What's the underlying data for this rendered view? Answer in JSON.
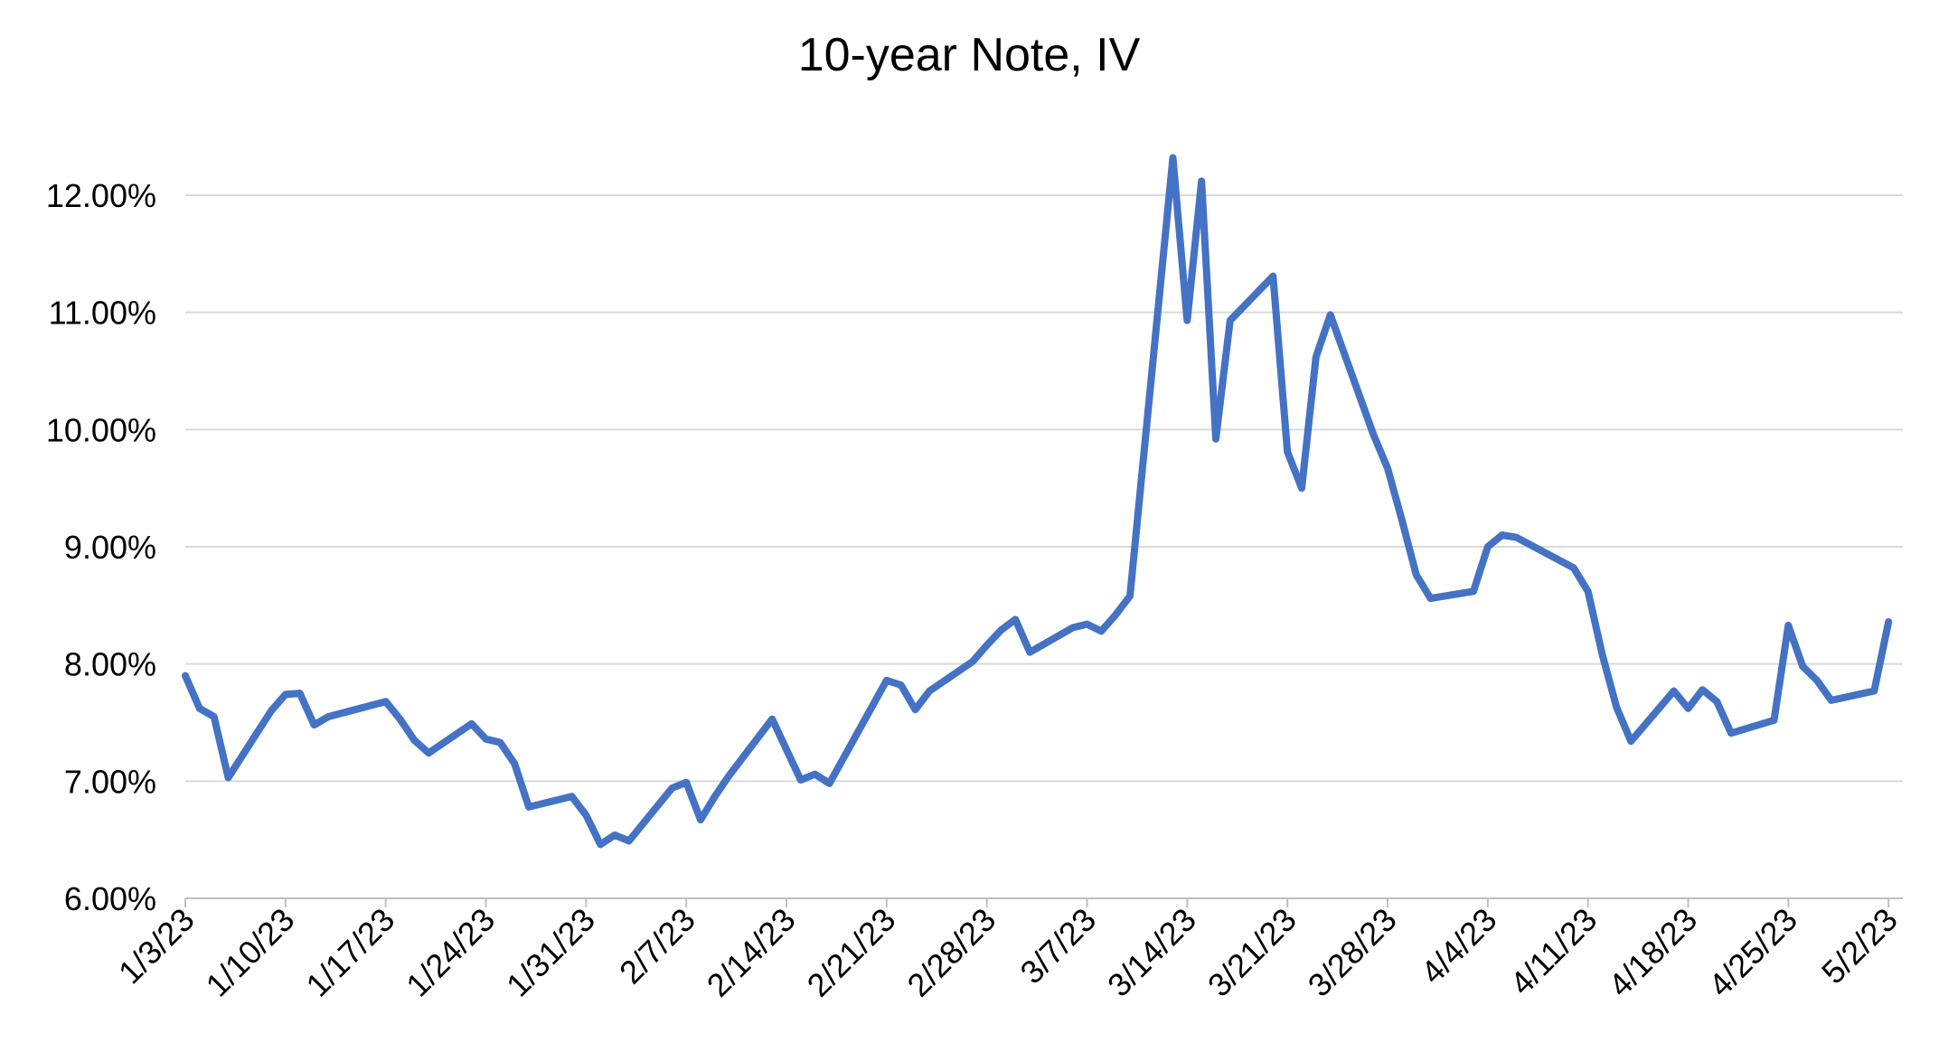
{
  "chart_data": {
    "type": "line",
    "title": "10-year Note, IV",
    "xlabel": "",
    "ylabel": "",
    "ylim": [
      6.0,
      12.0
    ],
    "y_tick_labels": [
      "6.00%",
      "7.00%",
      "8.00%",
      "9.00%",
      "10.00%",
      "11.00%",
      "12.00%"
    ],
    "y_ticks": [
      6,
      7,
      8,
      9,
      10,
      11,
      12
    ],
    "x_tick_labels": [
      "1/3/23",
      "1/10/23",
      "1/17/23",
      "1/24/23",
      "1/31/23",
      "2/7/23",
      "2/14/23",
      "2/21/23",
      "2/28/23",
      "3/7/23",
      "3/14/23",
      "3/21/23",
      "3/28/23",
      "4/4/23",
      "4/11/23",
      "4/18/23",
      "4/25/23",
      "5/2/23"
    ],
    "x_range": [
      "1/3/23",
      "5/3/23"
    ],
    "grid": true,
    "legend": "none",
    "line_color": "#4472C4",
    "series": [
      {
        "x": [
          "1/3/23",
          "1/4/23",
          "1/5/23",
          "1/6/23",
          "1/9/23",
          "1/10/23",
          "1/11/23",
          "1/12/23",
          "1/13/23",
          "1/17/23",
          "1/18/23",
          "1/19/23",
          "1/20/23",
          "1/23/23",
          "1/24/23",
          "1/25/23",
          "1/26/23",
          "1/27/23",
          "1/30/23",
          "1/31/23",
          "2/1/23",
          "2/2/23",
          "2/3/23",
          "2/6/23",
          "2/7/23",
          "2/8/23",
          "2/9/23",
          "2/10/23",
          "2/13/23",
          "2/14/23",
          "2/15/23",
          "2/16/23",
          "2/17/23",
          "2/21/23",
          "2/22/23",
          "2/23/23",
          "2/24/23",
          "2/27/23",
          "2/28/23",
          "3/1/23",
          "3/2/23",
          "3/3/23",
          "3/6/23",
          "3/7/23",
          "3/8/23",
          "3/9/23",
          "3/10/23",
          "3/13/23",
          "3/14/23",
          "3/15/23",
          "3/16/23",
          "3/17/23",
          "3/20/23",
          "3/21/23",
          "3/22/23",
          "3/23/23",
          "3/24/23",
          "3/27/23",
          "3/28/23",
          "3/29/23",
          "3/30/23",
          "3/31/23",
          "4/3/23",
          "4/4/23",
          "4/5/23",
          "4/6/23",
          "4/10/23",
          "4/11/23",
          "4/12/23",
          "4/13/23",
          "4/14/23",
          "4/17/23",
          "4/18/23",
          "4/19/23",
          "4/20/23",
          "4/21/23",
          "4/24/23",
          "4/25/23",
          "4/26/23",
          "4/27/23",
          "4/28/23",
          "5/1/23",
          "5/2/23"
        ],
        "values": [
          7.9,
          7.62,
          7.55,
          7.03,
          7.6,
          7.74,
          7.75,
          7.48,
          7.55,
          7.68,
          7.53,
          7.35,
          7.24,
          7.49,
          7.36,
          7.33,
          7.15,
          6.78,
          6.87,
          6.71,
          6.46,
          6.54,
          6.49,
          6.94,
          6.99,
          6.67,
          6.87,
          7.05,
          7.53,
          7.27,
          7.01,
          7.06,
          6.98,
          7.86,
          7.82,
          7.61,
          7.77,
          8.02,
          8.16,
          8.29,
          8.38,
          8.1,
          8.31,
          8.34,
          8.28,
          8.42,
          8.58,
          12.32,
          10.93,
          12.12,
          9.92,
          10.93,
          11.31,
          9.81,
          9.5,
          10.62,
          10.98,
          9.96,
          9.67,
          9.23,
          8.76,
          8.56,
          8.62,
          9.0,
          9.1,
          9.08,
          8.82,
          8.62,
          8.08,
          7.63,
          7.34,
          7.77,
          7.62,
          7.78,
          7.68,
          7.41,
          7.52,
          8.33,
          7.98,
          7.86,
          7.69,
          7.77,
          8.36
        ]
      }
    ]
  }
}
